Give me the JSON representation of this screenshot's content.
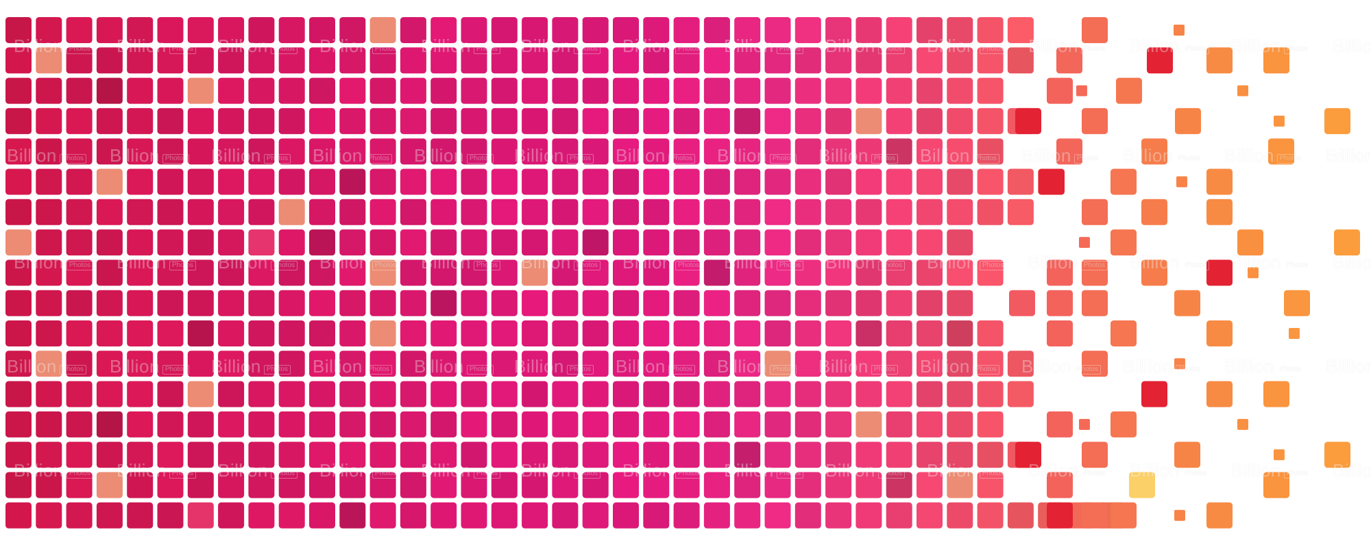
{
  "watermark": {
    "brand": "Billion",
    "sub": "Photos"
  },
  "palette": {
    "magenta": "#e0197a",
    "crimson": "#d21a4e",
    "pink": "#ef3f73",
    "coral": "#f4714f",
    "orange": "#fba03c",
    "accent_red": "#e32233",
    "peach": "#ec8c74",
    "yellow": "#fcd068"
  }
}
